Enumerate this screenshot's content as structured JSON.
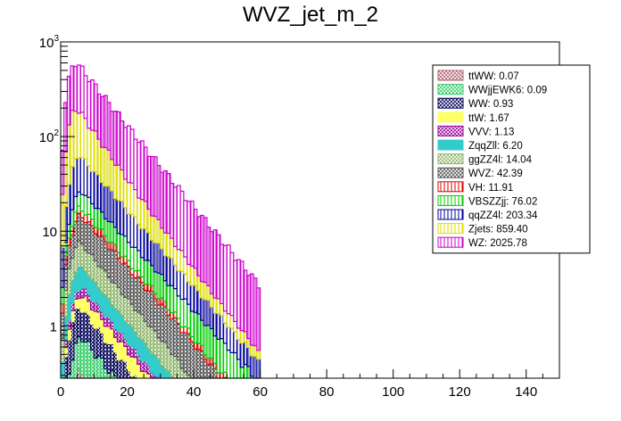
{
  "chart_data": {
    "type": "histogram-stacked",
    "title": "WVZ_jet_m_2",
    "xlabel": "",
    "ylabel": "",
    "xlim": [
      0,
      150
    ],
    "ylim": [
      0.28,
      1000
    ],
    "yscale": "log",
    "x_ticks": [
      0,
      20,
      40,
      60,
      80,
      100,
      120,
      140
    ],
    "y_tick_labels": [
      {
        "value": 1,
        "base": "1",
        "exp": ""
      },
      {
        "value": 10,
        "base": "10",
        "exp": ""
      },
      {
        "value": 100,
        "base": "10",
        "exp": "2"
      },
      {
        "value": 1000,
        "base": "10",
        "exp": "3"
      }
    ],
    "legend_position": "top-right",
    "series": [
      {
        "name": "ttWW",
        "total": "0.07",
        "color": "#b06070",
        "hatch": "cross",
        "peak": 0.35,
        "peak_x": 6,
        "decay": 0.1
      },
      {
        "name": "WWjjEWK6",
        "total": "0.09",
        "color": "#33cc66",
        "hatch": "cross",
        "peak": 0.45,
        "peak_x": 6,
        "decay": 0.1
      },
      {
        "name": "WW",
        "total": "0.93",
        "color": "#000055",
        "hatch": "cross",
        "peak": 0.9,
        "peak_x": 5,
        "decay": 0.11
      },
      {
        "name": "ttW",
        "total": "1.67",
        "color": "#ffff66",
        "hatch": "solid",
        "peak": 0.6,
        "peak_x": 7,
        "decay": 0.09
      },
      {
        "name": "VVV",
        "total": "1.13",
        "color": "#990099",
        "hatch": "cross",
        "peak": 0.5,
        "peak_x": 6,
        "decay": 0.09
      },
      {
        "name": "ZqqZll",
        "total": "6.20",
        "color": "#33cccc",
        "hatch": "solid",
        "peak": 1.8,
        "peak_x": 5,
        "decay": 0.1
      },
      {
        "name": "ggZZ4l",
        "total": "14.04",
        "color": "#8db56a",
        "hatch": "cross",
        "peak": 3.5,
        "peak_x": 5,
        "decay": 0.095
      },
      {
        "name": "WVZ",
        "total": "42.39",
        "color": "#555555",
        "hatch": "cross",
        "peak": 7.5,
        "peak_x": 6,
        "decay": 0.085
      },
      {
        "name": "VH",
        "total": "11.91",
        "color": "#dd0000",
        "hatch": "vertical",
        "peak": 3.2,
        "peak_x": 5,
        "decay": 0.1
      },
      {
        "name": "VBSZZjj",
        "total": "76.02",
        "color": "#00cc00",
        "hatch": "vertical",
        "peak": 9,
        "peak_x": 6,
        "decay": 0.075
      },
      {
        "name": "qqZZ4l",
        "total": "203.34",
        "color": "#000099",
        "hatch": "vertical",
        "peak": 40,
        "peak_x": 5,
        "decay": 0.1
      },
      {
        "name": "Zjets",
        "total": "859.40",
        "color": "#dddd00",
        "hatch": "vertical",
        "peak": 150,
        "peak_x": 4,
        "decay": 0.13
      },
      {
        "name": "WZ",
        "total": "2025.78",
        "color": "#cc00cc",
        "hatch": "vertical",
        "peak": 430,
        "peak_x": 4,
        "decay": 0.095
      }
    ]
  }
}
